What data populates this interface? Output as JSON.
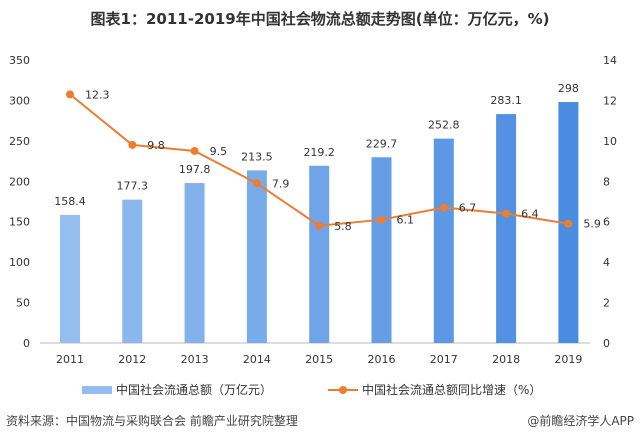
{
  "title": "图表1：2011-2019年中国社会物流总额走势图(单位：万亿元，%)",
  "source": "资料来源：中国物流与采购联合会 前瞻产业研究院整理",
  "credit": "@前瞻经济学人APP",
  "watermark": "前瞻产业研究院",
  "colors": {
    "bar_light": "#94bdf0",
    "bar_dark": "#4a8ce0",
    "line": "#ed7d31"
  },
  "chart_data": {
    "type": "bar+line",
    "categories": [
      "2011",
      "2012",
      "2013",
      "2014",
      "2015",
      "2016",
      "2017",
      "2018",
      "2019"
    ],
    "series": [
      {
        "name": "中国社会流通总额（万亿元）",
        "type": "bar",
        "axis": "left",
        "values": [
          158.4,
          177.3,
          197.8,
          213.5,
          219.2,
          229.7,
          252.8,
          283.1,
          298
        ]
      },
      {
        "name": "中国社会流通总额同比增速（%）",
        "type": "line",
        "axis": "right",
        "values": [
          12.3,
          9.8,
          9.5,
          7.9,
          5.8,
          6.1,
          6.7,
          6.4,
          5.9
        ]
      }
    ],
    "ylim_left": [
      0,
      350
    ],
    "yticks_left": [
      0,
      50,
      100,
      150,
      200,
      250,
      300,
      350
    ],
    "ylim_right": [
      0,
      14
    ],
    "yticks_right": [
      0,
      2,
      4,
      6,
      8,
      10,
      12,
      14
    ],
    "grid": false,
    "legend": "bottom"
  }
}
